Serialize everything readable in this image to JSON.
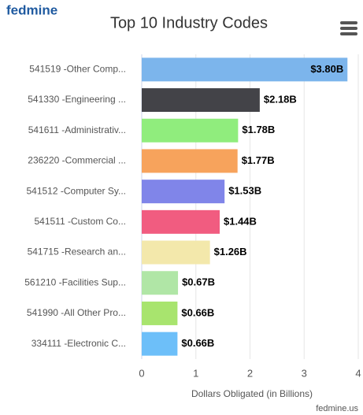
{
  "brand": "fedmine",
  "credit": "fedmine.us",
  "chart_data": {
    "type": "bar",
    "orientation": "horizontal",
    "title": "Top 10 Industry Codes",
    "x_label": "Dollars Obligated (in Billions)",
    "categories": [
      "541519 -Other Comp...",
      "541330 -Engineering ...",
      "541611 -Administrativ...",
      "236220 -Commercial ...",
      "541512 -Computer Sy...",
      "541511 -Custom Co...",
      "541715 -Research an...",
      "561210 -Facilities Sup...",
      "541990 -All Other Pro...",
      "334111 -Electronic C..."
    ],
    "values": [
      3.8,
      2.18,
      1.78,
      1.77,
      1.53,
      1.44,
      1.26,
      0.67,
      0.66,
      0.66
    ],
    "value_labels": [
      "$3.80B",
      "$2.18B",
      "$1.78B",
      "$1.77B",
      "$1.53B",
      "$1.44B",
      "$1.26B",
      "$0.67B",
      "$0.66B",
      "$0.66B"
    ],
    "colors": [
      "#7cb5ec",
      "#434348",
      "#90ed7d",
      "#f7a35c",
      "#8085e9",
      "#f15c80",
      "#f3e8ab",
      "#b0e6a6",
      "#a8e46e",
      "#6dbff9"
    ],
    "xlim": [
      0,
      4
    ],
    "xticks": [
      0,
      1,
      2,
      3,
      4
    ],
    "grid": true
  }
}
